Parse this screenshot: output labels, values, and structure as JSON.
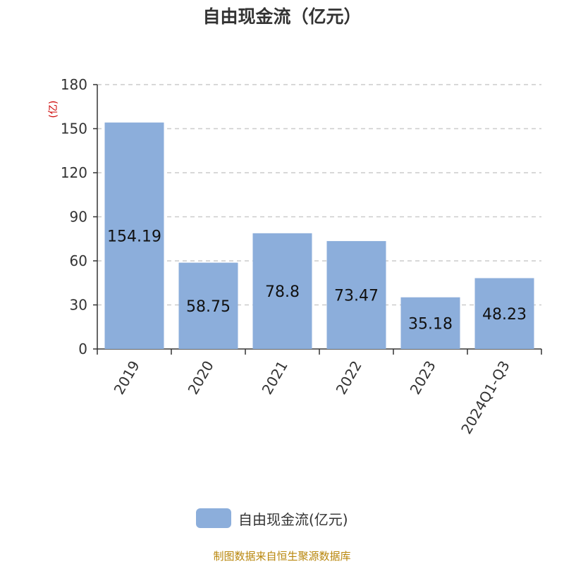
{
  "chart_data": {
    "type": "bar",
    "title": "自由现金流（亿元）",
    "ylabel": "(亿)",
    "categories": [
      "2019",
      "2020",
      "2021",
      "2022",
      "2023",
      "2024Q1-Q3"
    ],
    "series": [
      {
        "name": "自由现金流(亿元)",
        "values": [
          154.19,
          58.75,
          78.8,
          73.47,
          35.18,
          48.23
        ],
        "labels": [
          "154.19",
          "58.75",
          "78.8",
          "73.47",
          "35.18",
          "48.23"
        ]
      }
    ],
    "ylim": [
      0,
      180
    ],
    "yticks": [
      "0",
      "30",
      "60",
      "90",
      "120",
      "150",
      "180"
    ],
    "grid": true,
    "legend_position": "bottom"
  },
  "colors": {
    "bar": "#8caedb",
    "grid": "#cccccc",
    "axis": "#333333",
    "ylabel": "#cc0000",
    "source": "#b8860b"
  },
  "source_text": "制图数据来自恒生聚源数据库"
}
